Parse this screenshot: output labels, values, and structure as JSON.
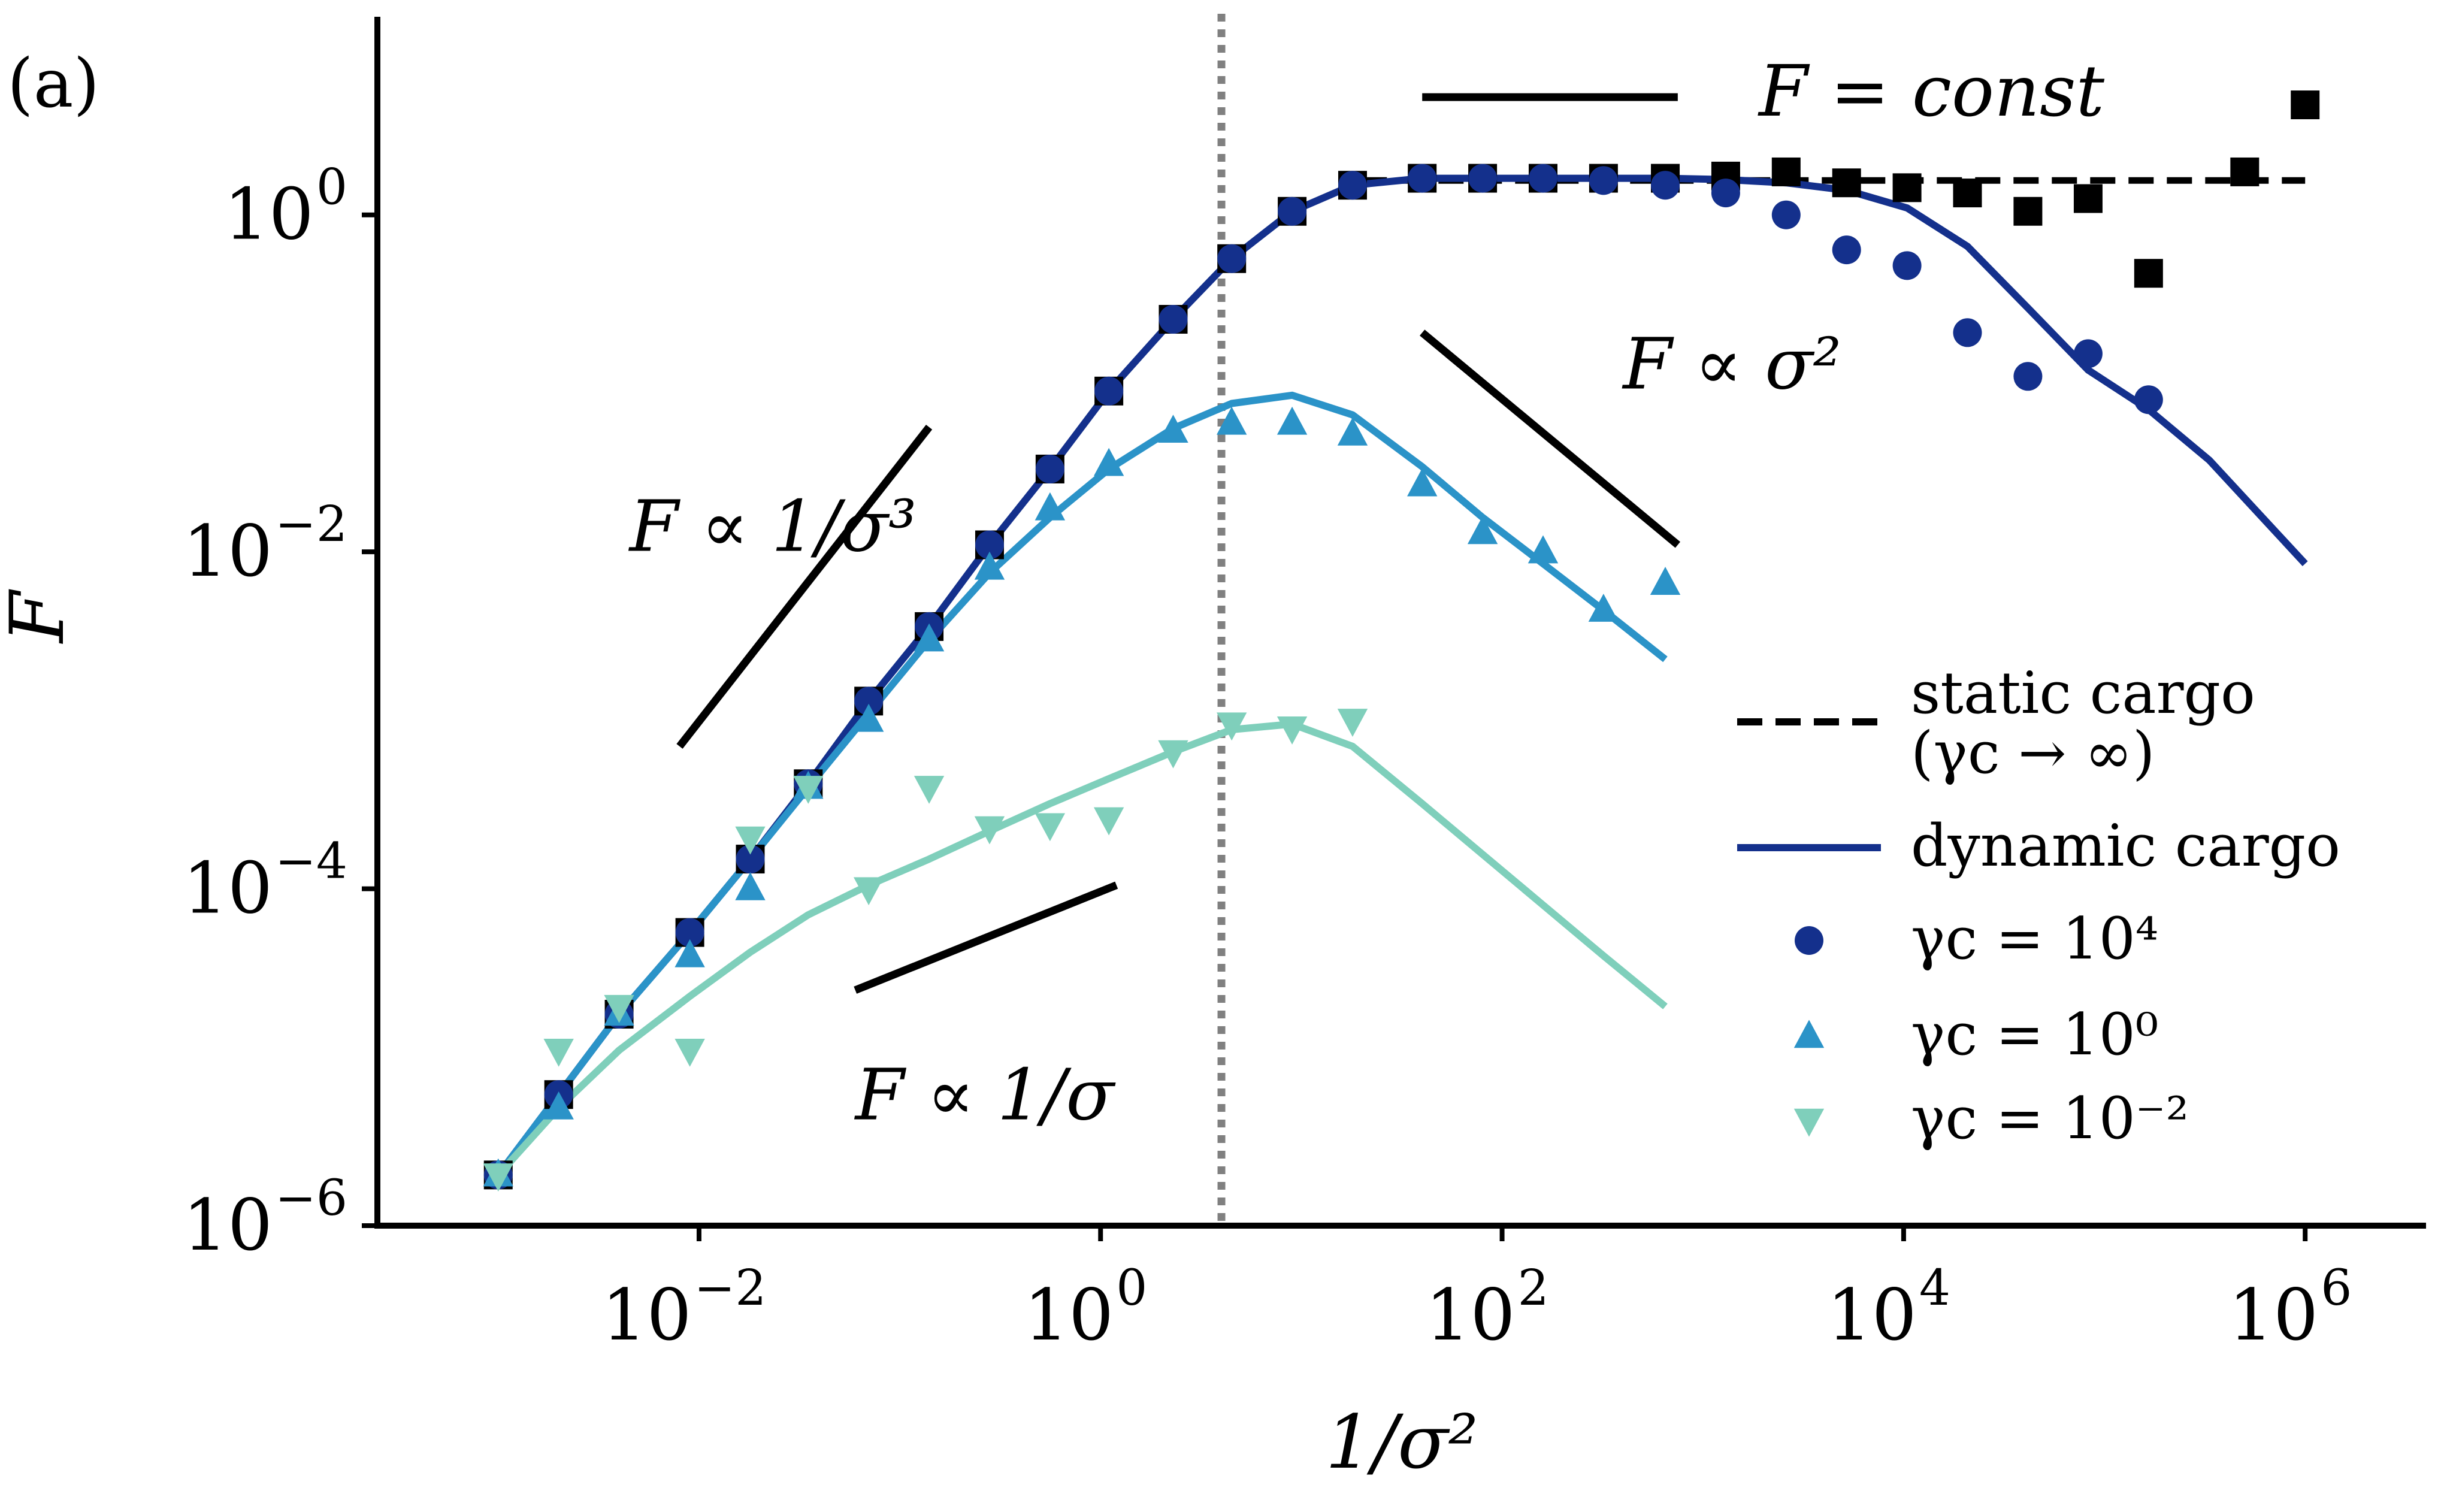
{
  "chart_data": {
    "type": "line",
    "panel_label": "(a)",
    "title": "",
    "xlabel": "1/σ²",
    "ylabel": "F",
    "xscale": "log",
    "yscale": "log",
    "xlim": [
      0.00025,
      4000000
    ],
    "ylim": [
      1e-06,
      15
    ],
    "x_ticks": [
      {
        "value": 0.01,
        "base": "10",
        "exp": "−2"
      },
      {
        "value": 1,
        "base": "10",
        "exp": "0"
      },
      {
        "value": 100,
        "base": "10",
        "exp": "2"
      },
      {
        "value": 10000,
        "base": "10",
        "exp": "4"
      },
      {
        "value": 1000000,
        "base": "10",
        "exp": "6"
      }
    ],
    "y_ticks": [
      {
        "value": 1,
        "base": "10",
        "exp": "0"
      },
      {
        "value": 0.01,
        "base": "10",
        "exp": "−2"
      },
      {
        "value": 0.0001,
        "base": "10",
        "exp": "−4"
      },
      {
        "value": 1e-06,
        "base": "10",
        "exp": "−6"
      }
    ],
    "vline": {
      "x": 4.0,
      "style": "dotted",
      "color": "#808080"
    },
    "colors": {
      "static": "#000000",
      "dark": "#14308c",
      "mid": "#2b93c8",
      "light": "#7fcfbb"
    },
    "series": [
      {
        "name": "static cargo (γc → ∞)",
        "kind": "dashed",
        "color": "#000000",
        "x": [
          20,
          1000000
        ],
        "y": [
          1.6,
          1.6
        ]
      },
      {
        "name": "dynamic cargo γc=1e4",
        "kind": "line",
        "color": "#14308c",
        "x": [
          0.001,
          0.002,
          0.004,
          0.009,
          0.018,
          0.035,
          0.07,
          0.14,
          0.28,
          0.56,
          1.1,
          2.3,
          4.5,
          9,
          18,
          40,
          80,
          160,
          320,
          650,
          1300,
          2600,
          5200,
          10400,
          20800,
          41600,
          83000,
          166000,
          333000,
          1000000
        ],
        "y": [
          2e-06,
          6e-06,
          1.8e-05,
          5.5e-05,
          0.00015,
          0.00042,
          0.0013,
          0.0036,
          0.011,
          0.031,
          0.09,
          0.24,
          0.55,
          1.05,
          1.5,
          1.65,
          1.65,
          1.65,
          1.65,
          1.65,
          1.62,
          1.55,
          1.4,
          1.1,
          0.65,
          0.28,
          0.12,
          0.07,
          0.035,
          0.0085
        ]
      },
      {
        "name": "dynamic cargo γc=1e0",
        "kind": "line",
        "color": "#2b93c8",
        "x": [
          0.001,
          0.002,
          0.004,
          0.009,
          0.018,
          0.035,
          0.07,
          0.14,
          0.28,
          0.56,
          1.1,
          2.3,
          4.5,
          9,
          18,
          40,
          80,
          160,
          320,
          650
        ],
        "y": [
          2e-06,
          6e-06,
          1.8e-05,
          5.5e-05,
          0.00015,
          0.0004,
          0.0011,
          0.003,
          0.0075,
          0.016,
          0.031,
          0.054,
          0.076,
          0.085,
          0.065,
          0.032,
          0.016,
          0.0085,
          0.0045,
          0.0023
        ]
      },
      {
        "name": "dynamic cargo γc=1e-2",
        "kind": "line",
        "color": "#7fcfbb",
        "x": [
          0.001,
          0.002,
          0.004,
          0.009,
          0.018,
          0.035,
          0.07,
          0.14,
          0.28,
          0.56,
          1.1,
          2.3,
          4.5,
          9,
          18,
          40,
          80,
          160,
          320,
          650
        ],
        "y": [
          2e-06,
          5e-06,
          1.1e-05,
          2.3e-05,
          4.2e-05,
          7e-05,
          0.000105,
          0.00015,
          0.00022,
          0.00032,
          0.00045,
          0.00065,
          0.00088,
          0.00095,
          0.0007,
          0.00032,
          0.00016,
          8e-05,
          4e-05,
          2e-05
        ]
      },
      {
        "name": "static cargo markers",
        "kind": "markers",
        "marker": "square",
        "color": "#000000",
        "x": [
          0.001,
          0.002,
          0.004,
          0.009,
          0.018,
          0.035,
          0.07,
          0.14,
          0.28,
          0.56,
          1.1,
          2.3,
          4.5,
          9,
          18,
          40,
          80,
          160,
          320,
          650,
          1300,
          2600,
          5200,
          10400,
          20800,
          41600,
          83000,
          166000,
          500000,
          1000000
        ],
        "y": [
          2e-06,
          6e-06,
          1.8e-05,
          5.5e-05,
          0.00015,
          0.00042,
          0.0013,
          0.0036,
          0.011,
          0.031,
          0.09,
          0.24,
          0.55,
          1.05,
          1.5,
          1.65,
          1.65,
          1.65,
          1.65,
          1.65,
          1.7,
          1.8,
          1.55,
          1.45,
          1.35,
          1.05,
          1.25,
          0.45,
          1.8,
          4.5
        ]
      },
      {
        "name": "γc = 10⁴",
        "kind": "markers",
        "marker": "circle",
        "color": "#14308c",
        "x": [
          0.001,
          0.002,
          0.004,
          0.009,
          0.018,
          0.035,
          0.07,
          0.14,
          0.28,
          0.56,
          1.1,
          2.3,
          4.5,
          9,
          18,
          40,
          80,
          160,
          320,
          650,
          1300,
          2600,
          5200,
          10400,
          20800,
          41600,
          83000,
          166000
        ],
        "y": [
          2e-06,
          6e-06,
          1.8e-05,
          5.5e-05,
          0.00015,
          0.00042,
          0.0013,
          0.0036,
          0.011,
          0.031,
          0.09,
          0.24,
          0.55,
          1.05,
          1.5,
          1.65,
          1.65,
          1.65,
          1.6,
          1.5,
          1.35,
          1.0,
          0.62,
          0.5,
          0.2,
          0.11,
          0.15,
          0.08
        ]
      },
      {
        "name": "γc = 10⁰",
        "kind": "markers",
        "marker": "triangle-up",
        "color": "#2b93c8",
        "x": [
          0.001,
          0.002,
          0.004,
          0.009,
          0.018,
          0.035,
          0.07,
          0.14,
          0.28,
          0.56,
          1.1,
          2.3,
          4.5,
          9,
          18,
          40,
          80,
          160,
          320,
          650
        ],
        "y": [
          2e-06,
          5e-06,
          1.8e-05,
          4e-05,
          0.0001,
          0.0004,
          0.001,
          0.003,
          0.008,
          0.018,
          0.033,
          0.052,
          0.058,
          0.058,
          0.05,
          0.025,
          0.013,
          0.01,
          0.0045,
          0.0065
        ]
      },
      {
        "name": "γc = 10⁻²",
        "kind": "markers",
        "marker": "triangle-down",
        "color": "#7fcfbb",
        "x": [
          0.001,
          0.002,
          0.004,
          0.009,
          0.018,
          0.035,
          0.07,
          0.14,
          0.28,
          0.56,
          1.1,
          2.3,
          4.5,
          9,
          18
        ],
        "y": [
          2e-06,
          1.1e-05,
          2e-05,
          1.1e-05,
          0.0002,
          0.0004,
          0.0001,
          0.0004,
          0.00023,
          0.00024,
          0.00026,
          0.00065,
          0.00095,
          0.0009,
          0.001
        ]
      }
    ],
    "guides": [
      {
        "label": "F ∝ 1/σ³",
        "x1": 0.008,
        "y1": 0.0007,
        "x2": 0.14,
        "y2": 0.055,
        "label_x": 0.0045,
        "label_y": 0.013
      },
      {
        "label": "F ∝ σ²",
        "x1": 40,
        "y1": 0.2,
        "x2": 750,
        "y2": 0.011,
        "label_x": 400,
        "label_y": 0.12
      },
      {
        "label": "F ∝ 1/σ",
        "x1": 0.06,
        "y1": 2.5e-05,
        "x2": 1.2,
        "y2": 0.000105,
        "label_x": 0.06,
        "label_y": 5.5e-06
      },
      {
        "label": "F = const",
        "x1": 40,
        "y1": 5,
        "x2": 750,
        "y2": 5,
        "label_x": 1900,
        "label_y": 5
      }
    ],
    "legend": {
      "position": "right",
      "entries": [
        {
          "label_line1": "static cargo",
          "label_line2": "(γc → ∞)",
          "kind": "dashed",
          "color": "#000000"
        },
        {
          "label_line1": "dynamic cargo",
          "label_line2": "",
          "kind": "line",
          "color": "#14308c"
        },
        {
          "label_line1": "γc = 10⁴",
          "label_line2": "",
          "kind": "circle",
          "color": "#14308c"
        },
        {
          "label_line1": "γc = 10⁰",
          "label_line2": "",
          "kind": "triangle-up",
          "color": "#2b93c8"
        },
        {
          "label_line1": "γc = 10⁻²",
          "label_line2": "",
          "kind": "triangle-down",
          "color": "#7fcfbb"
        }
      ]
    }
  }
}
